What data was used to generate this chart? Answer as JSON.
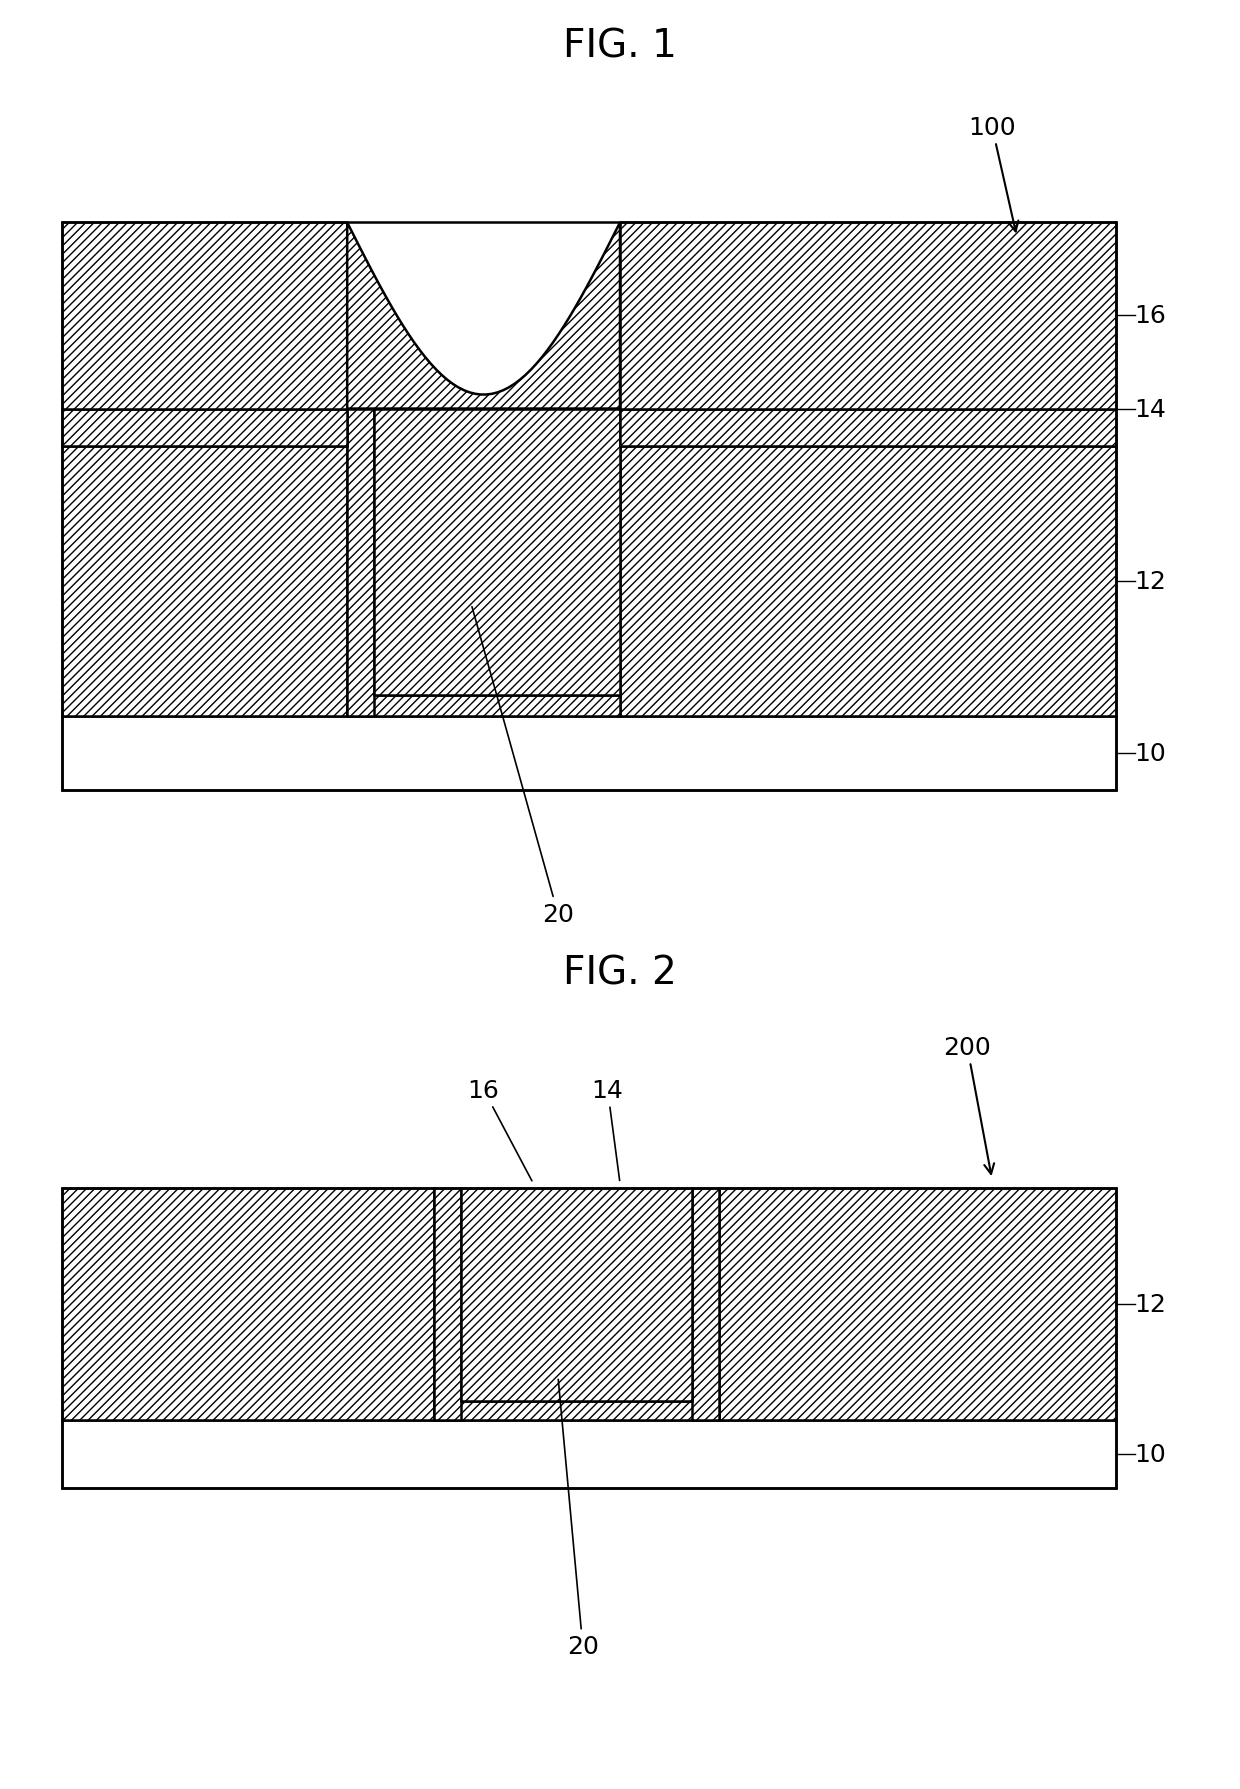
{
  "fig1_title": "FIG. 1",
  "fig2_title": "FIG. 2",
  "bg_color": "#ffffff",
  "label_fontsize": 18,
  "title_fontsize": 28,
  "lw": 1.8
}
